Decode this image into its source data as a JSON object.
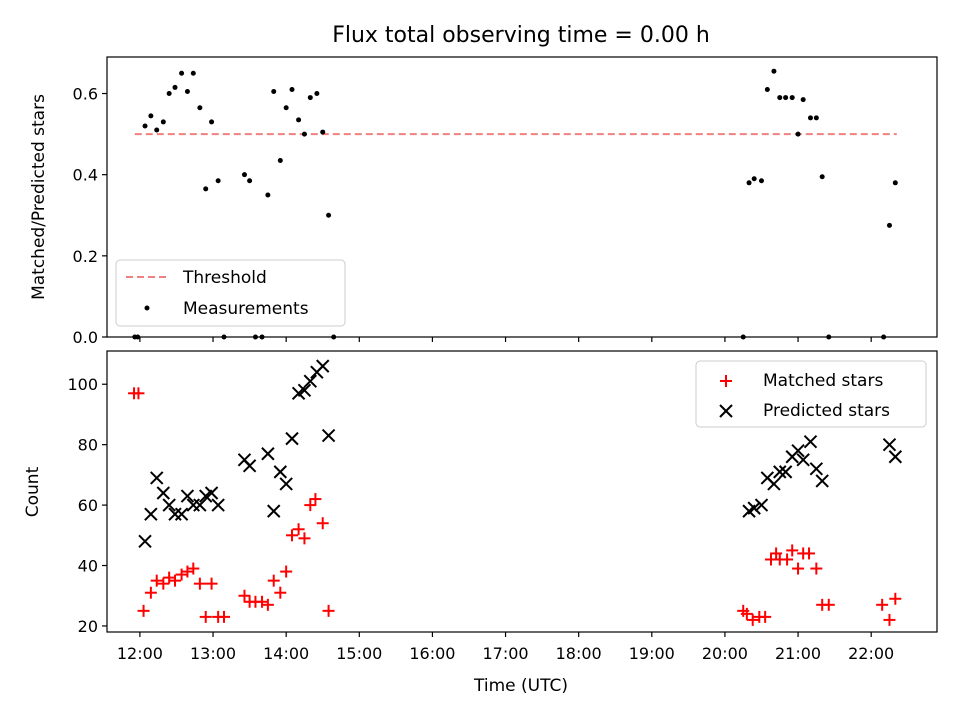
{
  "title": "Flux total observing time = 0.00 h",
  "chart_data": [
    {
      "type": "scatter",
      "ylabel": "Matched/Predicted stars",
      "xlabel": "",
      "xlim": [
        11.55,
        22.9
      ],
      "ylim": [
        0.0,
        0.69
      ],
      "yticks": [
        0.0,
        0.2,
        0.4,
        0.6
      ],
      "ytick_labels": [
        "0.0",
        "0.2",
        "0.4",
        "0.6"
      ],
      "legend_position": "lower-left",
      "threshold": {
        "name": "Threshold",
        "value": 0.5,
        "x_start": 11.93,
        "x_end": 22.35,
        "color": "#f08080"
      },
      "series": [
        {
          "name": "Measurements",
          "color": "#000000",
          "points": [
            [
              11.93,
              0.0
            ],
            [
              11.97,
              0.0
            ],
            [
              12.07,
              0.52
            ],
            [
              12.15,
              0.545
            ],
            [
              12.23,
              0.51
            ],
            [
              12.32,
              0.53
            ],
            [
              12.4,
              0.6
            ],
            [
              12.48,
              0.615
            ],
            [
              12.57,
              0.65
            ],
            [
              12.65,
              0.605
            ],
            [
              12.73,
              0.65
            ],
            [
              12.82,
              0.565
            ],
            [
              12.9,
              0.365
            ],
            [
              12.98,
              0.53
            ],
            [
              13.07,
              0.385
            ],
            [
              13.15,
              0.0
            ],
            [
              13.43,
              0.4
            ],
            [
              13.5,
              0.385
            ],
            [
              13.58,
              0.0
            ],
            [
              13.67,
              0.0
            ],
            [
              13.75,
              0.35
            ],
            [
              13.83,
              0.605
            ],
            [
              13.92,
              0.435
            ],
            [
              14.0,
              0.565
            ],
            [
              14.08,
              0.61
            ],
            [
              14.17,
              0.535
            ],
            [
              14.25,
              0.5
            ],
            [
              14.33,
              0.59
            ],
            [
              14.42,
              0.6
            ],
            [
              14.5,
              0.505
            ],
            [
              14.58,
              0.3
            ],
            [
              14.65,
              0.0
            ],
            [
              20.25,
              0.0
            ],
            [
              20.33,
              0.38
            ],
            [
              20.4,
              0.39
            ],
            [
              20.5,
              0.385
            ],
            [
              20.58,
              0.61
            ],
            [
              20.67,
              0.655
            ],
            [
              20.75,
              0.59
            ],
            [
              20.83,
              0.59
            ],
            [
              20.92,
              0.59
            ],
            [
              21.0,
              0.5
            ],
            [
              21.07,
              0.585
            ],
            [
              21.17,
              0.54
            ],
            [
              21.25,
              0.54
            ],
            [
              21.33,
              0.395
            ],
            [
              21.42,
              0.0
            ],
            [
              22.17,
              0.0
            ],
            [
              22.25,
              0.275
            ],
            [
              22.33,
              0.38
            ]
          ]
        }
      ]
    },
    {
      "type": "scatter",
      "ylabel": "Count",
      "xlabel": "Time (UTC)",
      "xlim": [
        11.55,
        22.9
      ],
      "ylim": [
        18,
        111
      ],
      "yticks": [
        20,
        40,
        60,
        80,
        100
      ],
      "ytick_labels": [
        "20",
        "40",
        "60",
        "80",
        "100"
      ],
      "xticks": [
        12,
        13,
        14,
        15,
        16,
        17,
        18,
        19,
        20,
        21,
        22
      ],
      "xtick_labels": [
        "12:00",
        "13:00",
        "14:00",
        "15:00",
        "16:00",
        "17:00",
        "18:00",
        "19:00",
        "20:00",
        "21:00",
        "22:00"
      ],
      "legend_position": "upper-right",
      "series": [
        {
          "name": "Matched stars",
          "marker": "plus",
          "color": "#ff0000",
          "points": [
            [
              11.92,
              97
            ],
            [
              11.98,
              97
            ],
            [
              12.05,
              25
            ],
            [
              12.15,
              31
            ],
            [
              12.23,
              35
            ],
            [
              12.32,
              34
            ],
            [
              12.4,
              36
            ],
            [
              12.48,
              35
            ],
            [
              12.57,
              37
            ],
            [
              12.65,
              38
            ],
            [
              12.73,
              39
            ],
            [
              12.82,
              34
            ],
            [
              12.9,
              23
            ],
            [
              12.98,
              34
            ],
            [
              13.07,
              23
            ],
            [
              13.15,
              23
            ],
            [
              13.43,
              30
            ],
            [
              13.5,
              28
            ],
            [
              13.58,
              28
            ],
            [
              13.67,
              28
            ],
            [
              13.75,
              27
            ],
            [
              13.83,
              35
            ],
            [
              13.92,
              31
            ],
            [
              14.0,
              38
            ],
            [
              14.08,
              50
            ],
            [
              14.17,
              52
            ],
            [
              14.25,
              49
            ],
            [
              14.33,
              60
            ],
            [
              14.4,
              62
            ],
            [
              14.5,
              54
            ],
            [
              14.58,
              25
            ],
            [
              20.25,
              25
            ],
            [
              20.3,
              24
            ],
            [
              20.38,
              22
            ],
            [
              20.47,
              23
            ],
            [
              20.55,
              23
            ],
            [
              20.63,
              42
            ],
            [
              20.7,
              44
            ],
            [
              20.75,
              42
            ],
            [
              20.85,
              42
            ],
            [
              20.92,
              45
            ],
            [
              21.0,
              39
            ],
            [
              21.07,
              44
            ],
            [
              21.15,
              44
            ],
            [
              21.25,
              39
            ],
            [
              21.33,
              27
            ],
            [
              21.42,
              27
            ],
            [
              22.15,
              27
            ],
            [
              22.25,
              22
            ],
            [
              22.33,
              29
            ]
          ]
        },
        {
          "name": "Predicted stars",
          "marker": "x",
          "color": "#000000",
          "points": [
            [
              12.07,
              48
            ],
            [
              12.15,
              57
            ],
            [
              12.23,
              69
            ],
            [
              12.32,
              64
            ],
            [
              12.4,
              60
            ],
            [
              12.48,
              57
            ],
            [
              12.57,
              57
            ],
            [
              12.65,
              63
            ],
            [
              12.73,
              60
            ],
            [
              12.82,
              60
            ],
            [
              12.9,
              63
            ],
            [
              12.98,
              64
            ],
            [
              13.07,
              60
            ],
            [
              13.43,
              75
            ],
            [
              13.5,
              73
            ],
            [
              13.75,
              77
            ],
            [
              13.83,
              58
            ],
            [
              13.92,
              71
            ],
            [
              14.0,
              67
            ],
            [
              14.08,
              82
            ],
            [
              14.17,
              97
            ],
            [
              14.25,
              98
            ],
            [
              14.33,
              101
            ],
            [
              14.42,
              104
            ],
            [
              14.5,
              106
            ],
            [
              14.58,
              83
            ],
            [
              20.33,
              58
            ],
            [
              20.4,
              59
            ],
            [
              20.5,
              60
            ],
            [
              20.58,
              69
            ],
            [
              20.67,
              67
            ],
            [
              20.75,
              71
            ],
            [
              20.83,
              71
            ],
            [
              20.92,
              76
            ],
            [
              21.0,
              78
            ],
            [
              21.07,
              75
            ],
            [
              21.17,
              81
            ],
            [
              21.25,
              72
            ],
            [
              21.33,
              68
            ],
            [
              22.25,
              80
            ],
            [
              22.33,
              76
            ]
          ]
        }
      ]
    }
  ]
}
